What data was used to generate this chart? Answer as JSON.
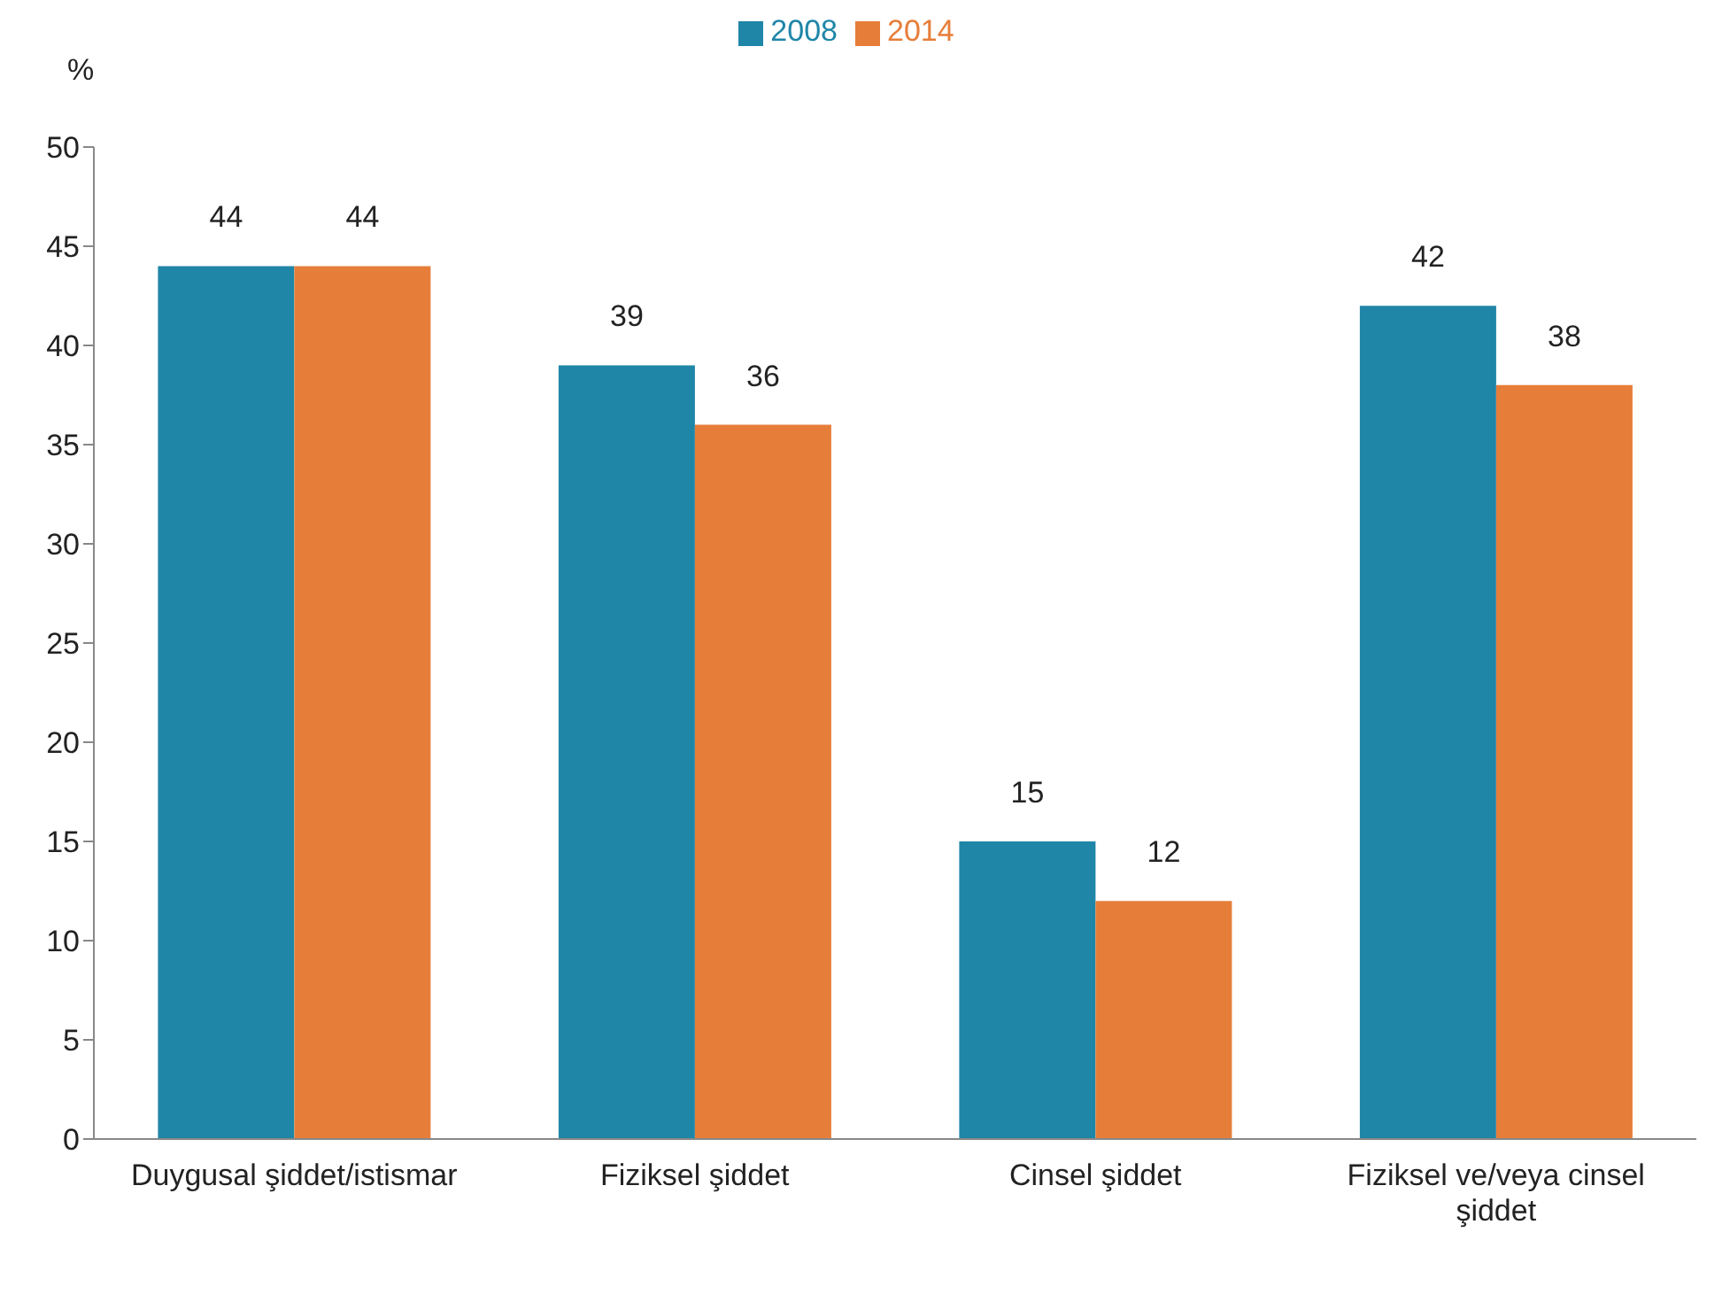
{
  "chart_data": {
    "type": "bar",
    "ylabel": "%",
    "categories": [
      "Duygusal şiddet/istismar",
      "Fiziksel şiddet",
      "Cinsel şiddet",
      "Fiziksel ve/veya cinsel şiddet"
    ],
    "series": [
      {
        "name": "2008",
        "color": "#1f86a8",
        "values": [
          44,
          39,
          15,
          42
        ]
      },
      {
        "name": "2014",
        "color": "#e67e3a",
        "values": [
          44,
          36,
          12,
          38
        ]
      }
    ],
    "ylim": [
      0,
      50
    ],
    "yticks": [
      0,
      5,
      10,
      15,
      20,
      25,
      30,
      35,
      40,
      45,
      50
    ],
    "grid": false,
    "legend": "top",
    "data_labels": true
  }
}
